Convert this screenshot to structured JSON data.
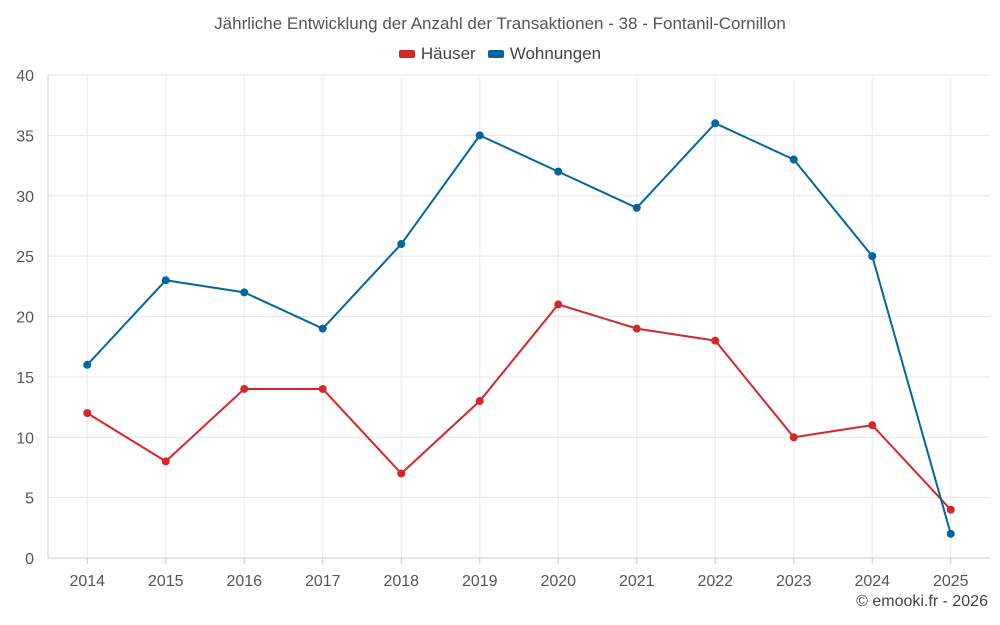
{
  "chart_data": {
    "type": "line",
    "title": "Jährliche Entwicklung der Anzahl der Transaktionen - 38 - Fontanil-Cornillon",
    "xlabel": "",
    "ylabel": "",
    "categories": [
      "2014",
      "2015",
      "2016",
      "2017",
      "2018",
      "2019",
      "2020",
      "2021",
      "2022",
      "2023",
      "2024",
      "2025"
    ],
    "yticks": [
      0,
      5,
      10,
      15,
      20,
      25,
      30,
      35,
      40
    ],
    "ylim": [
      0,
      40
    ],
    "grid": true,
    "legend_position": "top-center",
    "series": [
      {
        "name": "Häuser",
        "color": "#d62728",
        "values": [
          12,
          8,
          14,
          14,
          7,
          13,
          21,
          19,
          18,
          10,
          11,
          4
        ]
      },
      {
        "name": "Wohnungen",
        "color": "#03669e",
        "values": [
          16,
          23,
          22,
          19,
          26,
          35,
          32,
          29,
          36,
          33,
          25,
          2
        ]
      }
    ]
  },
  "legend": {
    "items": [
      {
        "label": "Häuser",
        "color": "#d62728"
      },
      {
        "label": "Wohnungen",
        "color": "#03669e"
      }
    ]
  },
  "footer": {
    "credit": "© emooki.fr - 2026"
  }
}
